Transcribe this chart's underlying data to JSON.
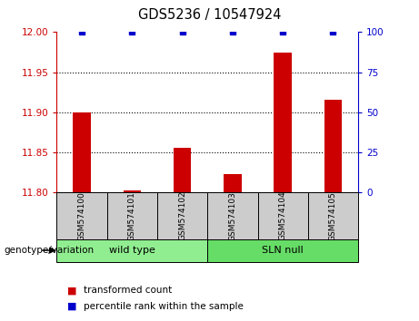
{
  "title": "GDS5236 / 10547924",
  "samples": [
    "GSM574100",
    "GSM574101",
    "GSM574102",
    "GSM574103",
    "GSM574104",
    "GSM574105"
  ],
  "transformed_counts": [
    11.9,
    11.803,
    11.856,
    11.823,
    11.975,
    11.916
  ],
  "percentile_ranks": [
    100,
    100,
    100,
    100,
    100,
    100
  ],
  "ylim_left": [
    11.8,
    12.0
  ],
  "ylim_right": [
    0,
    100
  ],
  "yticks_left": [
    11.8,
    11.85,
    11.9,
    11.95,
    12.0
  ],
  "yticks_right": [
    0,
    25,
    50,
    75,
    100
  ],
  "groups": [
    {
      "label": "wild type",
      "indices": [
        0,
        1,
        2
      ],
      "color": "#90EE90"
    },
    {
      "label": "SLN null",
      "indices": [
        3,
        4,
        5
      ],
      "color": "#66DD66"
    }
  ],
  "bar_color": "#cc0000",
  "dot_color": "#0000cc",
  "bar_bottom": 11.8,
  "grid_color": "black",
  "left_axis_color": "#cc0000",
  "right_axis_color": "#0000cc",
  "bg_label": "#cccccc",
  "genotype_label": "genotype/variation",
  "legend_items": [
    {
      "color": "#cc0000",
      "label": "transformed count"
    },
    {
      "color": "#0000cc",
      "label": "percentile rank within the sample"
    }
  ]
}
